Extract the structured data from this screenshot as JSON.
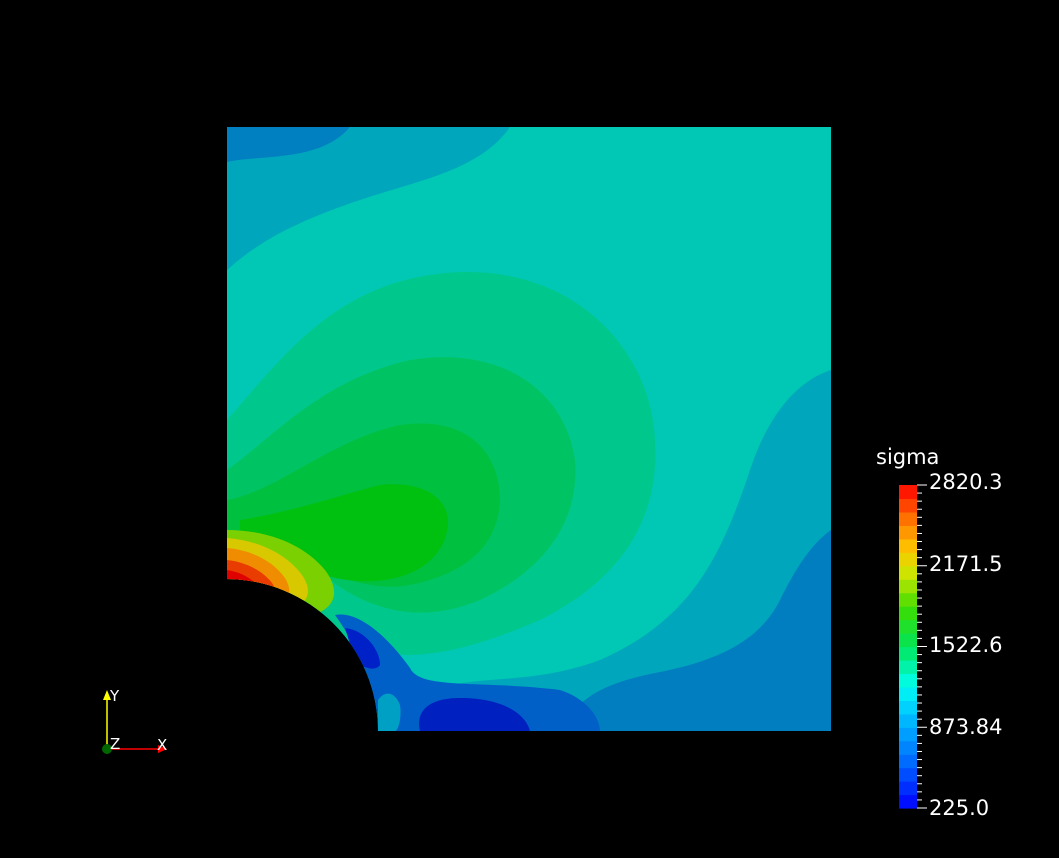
{
  "scalar_bar": {
    "title": "sigma",
    "labels": [
      "2820.3",
      "2171.5",
      "1522.6",
      "873.84",
      "225.0"
    ],
    "min": 225.0,
    "max": 2820.3
  },
  "axes": {
    "y_label": "Y",
    "z_label": "Z",
    "x_label": "X"
  },
  "colors": {
    "background": "#000000",
    "max_color": "#ff0000",
    "min_color": "#0000ff",
    "y_axis": "#ffff00",
    "x_axis": "#ff0000",
    "z_axis": "#00aa00"
  }
}
